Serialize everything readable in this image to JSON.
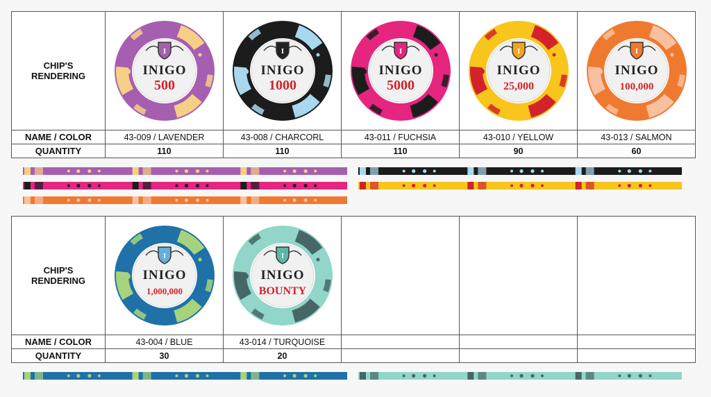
{
  "headers": {
    "rendering": "CHIP'S RENDERING",
    "name": "NAME / COLOR",
    "quantity": "QUANTITY"
  },
  "brand": "INIGO",
  "logo_letter": "I",
  "chips_row1": [
    {
      "name": "43-009 / LAVENDER",
      "quantity": "110",
      "value": "500",
      "base": "#a65fb0",
      "accent": "#f5cf86",
      "shield": "#a65fb0"
    },
    {
      "name": "43-008 / CHARCORL",
      "quantity": "110",
      "value": "1000",
      "base": "#1c1c1c",
      "accent": "#a8d7ee",
      "shield": "#222222"
    },
    {
      "name": "43-011 / FUCHSIA",
      "quantity": "110",
      "value": "5000",
      "base": "#e6257f",
      "accent": "#1c1c1c",
      "shield": "#e6257f"
    },
    {
      "name": "43-010 / YELLOW",
      "quantity": "90",
      "value": "25,000",
      "base": "#f7c51c",
      "accent": "#d2232a",
      "shield": "#f3a51b"
    },
    {
      "name": "43-013 / SALMON",
      "quantity": "60",
      "value": "100,000",
      "base": "#ef7a2f",
      "accent": "#f8c0a0",
      "shield": "#ef7a2f"
    }
  ],
  "chips_row2": [
    {
      "name": "43-004 / BLUE",
      "quantity": "30",
      "value": "1,000,000",
      "base": "#1f71a8",
      "accent": "#a6d37c",
      "shield": "#64b0dc"
    },
    {
      "name": "43-014 / TURQUOISE",
      "quantity": "20",
      "value": "BOUNTY",
      "base": "#91d6c8",
      "accent": "#466766",
      "shield": "#5bb8a6"
    },
    {
      "name": "",
      "quantity": ""
    },
    {
      "name": "",
      "quantity": ""
    },
    {
      "name": "",
      "quantity": ""
    }
  ],
  "stripes": [
    {
      "id": "lavender",
      "base": "#a65fb0",
      "accent": "#f5cf86",
      "dots": "#f5cf86"
    },
    {
      "id": "charcoal",
      "base": "#1c1c1c",
      "accent": "#a8d7ee",
      "dots": "#a8d7ee"
    },
    {
      "id": "fuchsia",
      "base": "#e6257f",
      "accent": "#1c1c1c",
      "dots": "#1c1c1c"
    },
    {
      "id": "yellow",
      "base": "#f7c51c",
      "accent": "#d2232a",
      "dots": "#d2232a"
    },
    {
      "id": "salmon",
      "base": "#ef7a2f",
      "accent": "#f8c0a0",
      "dots": "#f8c0a0"
    },
    {
      "id": "blue",
      "base": "#1f71a8",
      "accent": "#a6d37c",
      "dots": "#a6d37c"
    },
    {
      "id": "turquoise",
      "base": "#91d6c8",
      "accent": "#466766",
      "dots": "#466766"
    }
  ]
}
